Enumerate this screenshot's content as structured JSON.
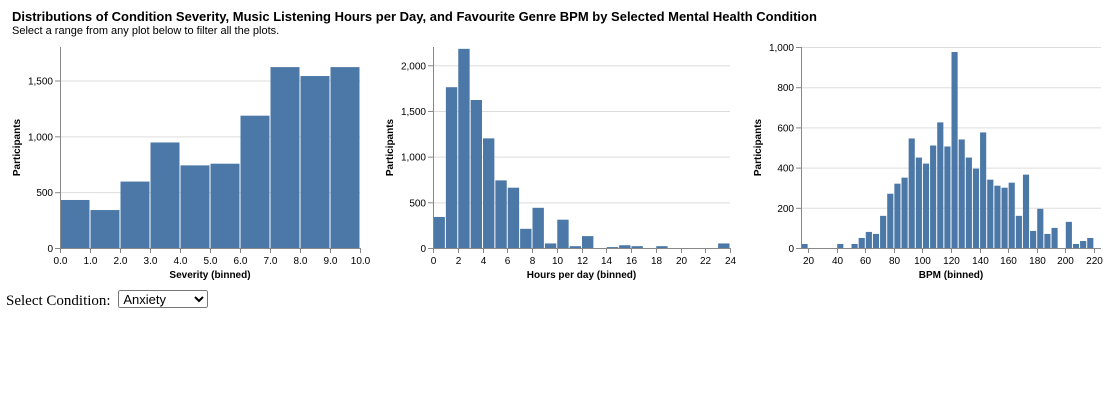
{
  "header": {
    "title": "Distributions of Condition Severity, Music Listening Hours per Day, and Favourite Genre BPM by Selected Mental Health Condition",
    "subtitle": "Select a range from any plot below to filter all the plots."
  },
  "controls": {
    "condition_label": "Select Condition:",
    "condition_selected": "Anxiety",
    "condition_options": [
      "Anxiety"
    ]
  },
  "colors": {
    "bar": "#4c78a8",
    "grid": "#dddddd",
    "axis": "#888888"
  },
  "chart_data": [
    {
      "type": "bar",
      "xlabel": "Severity (binned)",
      "ylabel": "Participants",
      "bin_edges": [
        0,
        1,
        2,
        3,
        4,
        5,
        6,
        7,
        8,
        9,
        10
      ],
      "values": [
        430,
        340,
        595,
        945,
        740,
        755,
        1185,
        1620,
        1540,
        1620
      ],
      "x_ticks": [
        "0.0",
        "1.0",
        "2.0",
        "3.0",
        "4.0",
        "5.0",
        "6.0",
        "7.0",
        "8.0",
        "9.0",
        "10.0"
      ],
      "y_ticks": [
        0,
        500,
        1000,
        1500
      ],
      "y_tick_labels": [
        "0",
        "500",
        "1,000",
        "1,500"
      ],
      "xlim": [
        0,
        10
      ],
      "ylim": [
        0,
        1800
      ],
      "grid": true
    },
    {
      "type": "bar",
      "xlabel": "Hours per day (binned)",
      "ylabel": "Participants",
      "bin_edges": [
        0,
        1,
        2,
        3,
        4,
        5,
        6,
        7,
        8,
        9,
        10,
        11,
        12,
        13,
        14,
        15,
        16,
        17,
        18,
        19,
        20,
        21,
        22,
        23,
        24
      ],
      "values": [
        340,
        1760,
        2180,
        1620,
        1200,
        740,
        660,
        210,
        440,
        50,
        310,
        20,
        130,
        0,
        10,
        30,
        20,
        0,
        20,
        0,
        0,
        0,
        0,
        50
      ],
      "x_ticks": [
        "0",
        "2",
        "4",
        "6",
        "8",
        "10",
        "12",
        "14",
        "16",
        "18",
        "20",
        "22",
        "24"
      ],
      "y_ticks": [
        0,
        500,
        1000,
        1500,
        2000
      ],
      "y_tick_labels": [
        "0",
        "500",
        "1,000",
        "1,500",
        "2,000"
      ],
      "xlim": [
        0,
        24
      ],
      "ylim": [
        0,
        2200
      ],
      "grid": true
    },
    {
      "type": "bar",
      "xlabel": "BPM (binned)",
      "ylabel": "Participants",
      "bin_edges": [
        15,
        20,
        25,
        30,
        35,
        40,
        45,
        50,
        55,
        60,
        65,
        70,
        75,
        80,
        85,
        90,
        95,
        100,
        105,
        110,
        115,
        120,
        125,
        130,
        135,
        140,
        145,
        150,
        155,
        160,
        165,
        170,
        175,
        180,
        185,
        190,
        195,
        200,
        205,
        210,
        215,
        220,
        225,
        230
      ],
      "values": [
        20,
        0,
        0,
        0,
        0,
        20,
        0,
        20,
        50,
        80,
        70,
        160,
        270,
        320,
        350,
        545,
        450,
        420,
        510,
        625,
        505,
        975,
        540,
        450,
        395,
        575,
        340,
        310,
        300,
        325,
        160,
        365,
        85,
        195,
        70,
        100,
        0,
        130,
        20,
        35,
        50,
        0,
        0
      ],
      "x_ticks": [
        "20",
        "40",
        "60",
        "80",
        "100",
        "120",
        "140",
        "160",
        "180",
        "200",
        "220"
      ],
      "x_tick_values": [
        20,
        40,
        60,
        80,
        100,
        120,
        140,
        160,
        180,
        200,
        220
      ],
      "y_ticks": [
        0,
        200,
        400,
        600,
        800,
        1000
      ],
      "y_tick_labels": [
        "0",
        "200",
        "400",
        "600",
        "800",
        "1,000"
      ],
      "xlim": [
        15,
        225
      ],
      "ylim": [
        0,
        1000
      ],
      "grid": true
    }
  ]
}
